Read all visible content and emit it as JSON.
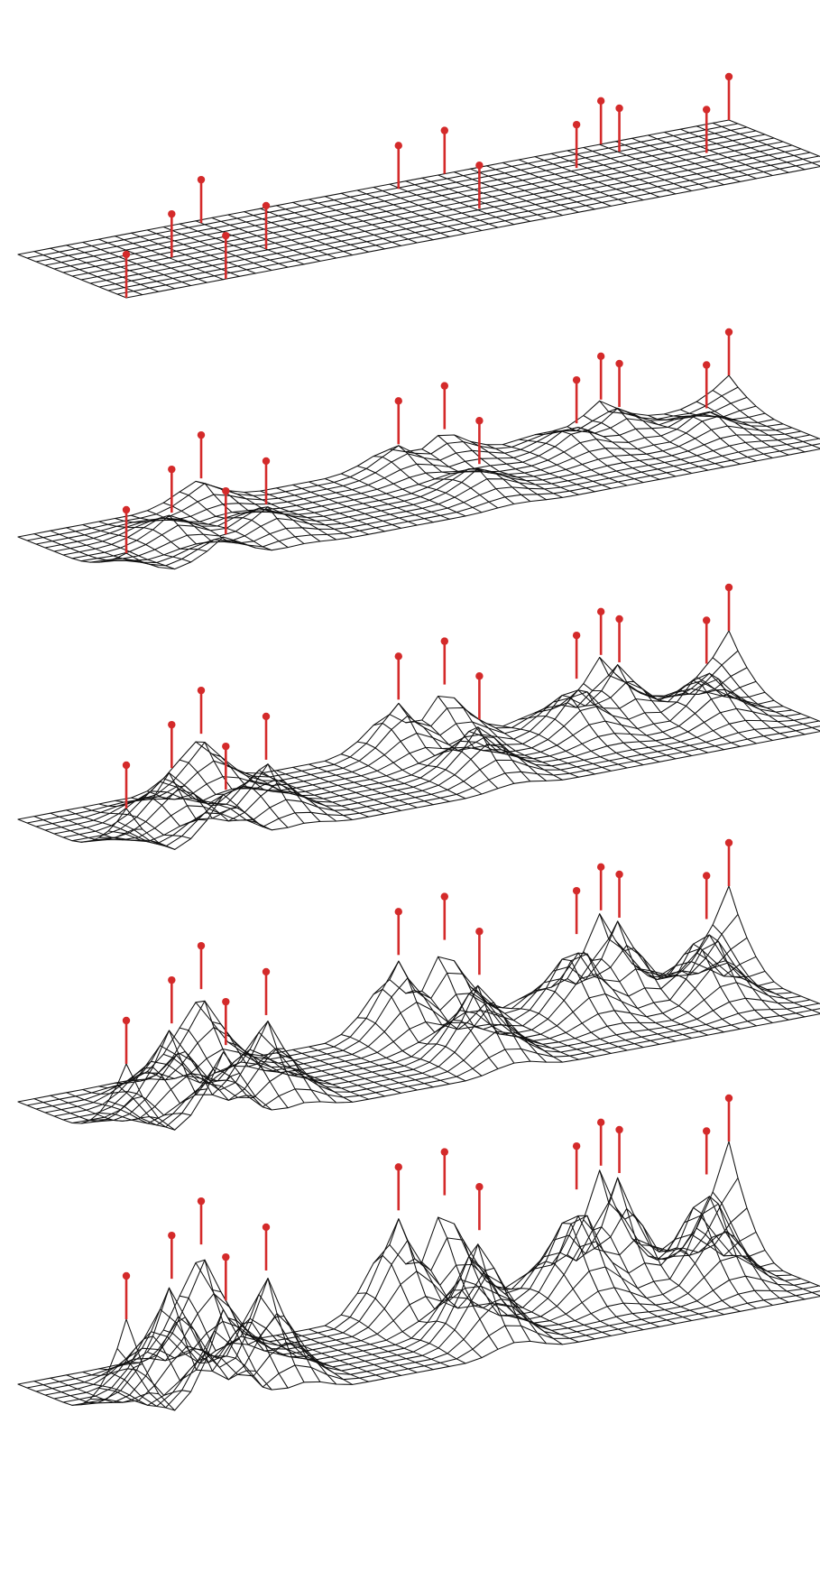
{
  "figure": {
    "kind": "form-finding sequence of a hanging cable-net surface",
    "stage_count": 5,
    "stages": [
      {
        "stage": 1,
        "sag_factor": 0.0
      },
      {
        "stage": 2,
        "sag_factor": 0.25
      },
      {
        "stage": 3,
        "sag_factor": 0.5
      },
      {
        "stage": 4,
        "sag_factor": 0.75
      },
      {
        "stage": 5,
        "sag_factor": 1.0
      }
    ],
    "grid": {
      "columns": 44,
      "rows": 12
    },
    "supports": [
      {
        "u": 0.0,
        "v": 1.0
      },
      {
        "u": 0.14,
        "v": 1.0
      },
      {
        "u": 0.14,
        "v": 0.5
      },
      {
        "u": 0.25,
        "v": 0.65
      },
      {
        "u": 0.25,
        "v": 0.05
      },
      {
        "u": 0.52,
        "v": 0.1
      },
      {
        "u": 0.55,
        "v": 0.65
      },
      {
        "u": 0.6,
        "v": 0.0
      },
      {
        "u": 0.74,
        "v": 0.3
      },
      {
        "u": 0.82,
        "v": 0.0
      },
      {
        "u": 0.82,
        "v": 0.17
      },
      {
        "u": 0.9,
        "v": 0.45
      },
      {
        "u": 1.0,
        "v": 0.0
      }
    ],
    "colors": {
      "mesh": "#111111",
      "support": "#d42a2a",
      "background": "#ffffff"
    }
  }
}
